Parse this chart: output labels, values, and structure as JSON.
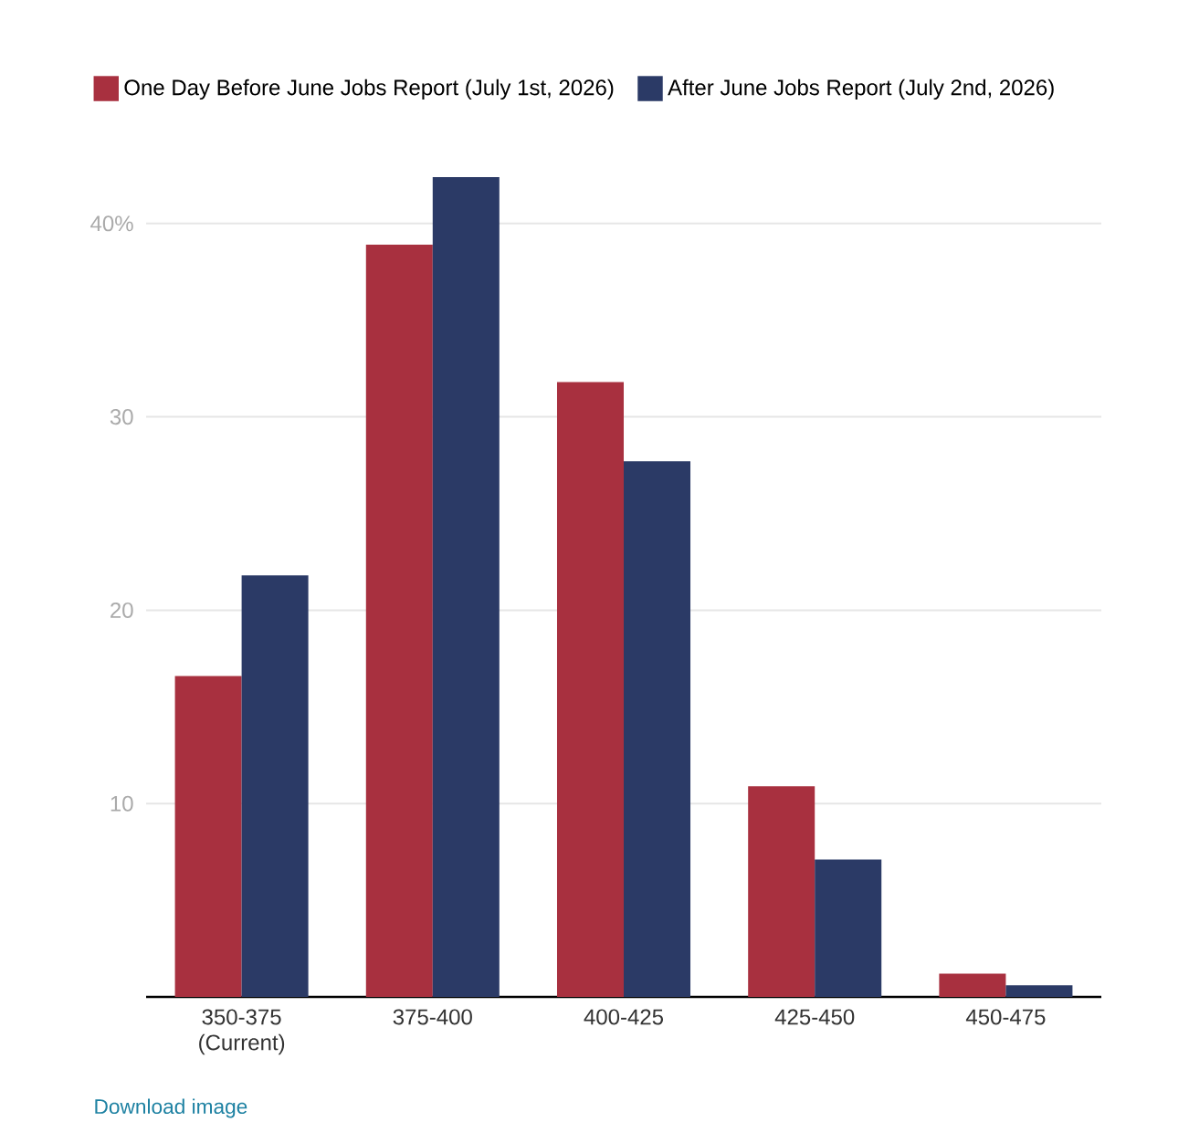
{
  "chart_data": {
    "type": "bar",
    "categories": [
      "350-375 (Current)",
      "375-400",
      "400-425",
      "425-450",
      "450-475"
    ],
    "series": [
      {
        "name": "One Day Before June Jobs Report (July 1st, 2026)",
        "color": "#a8303f",
        "values": [
          16.6,
          38.9,
          31.8,
          10.9,
          1.2
        ]
      },
      {
        "name": "After June Jobs Report (July 2nd, 2026)",
        "color": "#2b3a66",
        "values": [
          21.8,
          42.4,
          27.7,
          7.1,
          0.6
        ]
      }
    ],
    "ylim": [
      0,
      42.4
    ],
    "yticks": [
      10,
      20,
      30,
      {
        "value": 40,
        "label": "40%"
      }
    ],
    "grid": "y",
    "legend": "top",
    "annotations": [
      "Download image"
    ]
  }
}
